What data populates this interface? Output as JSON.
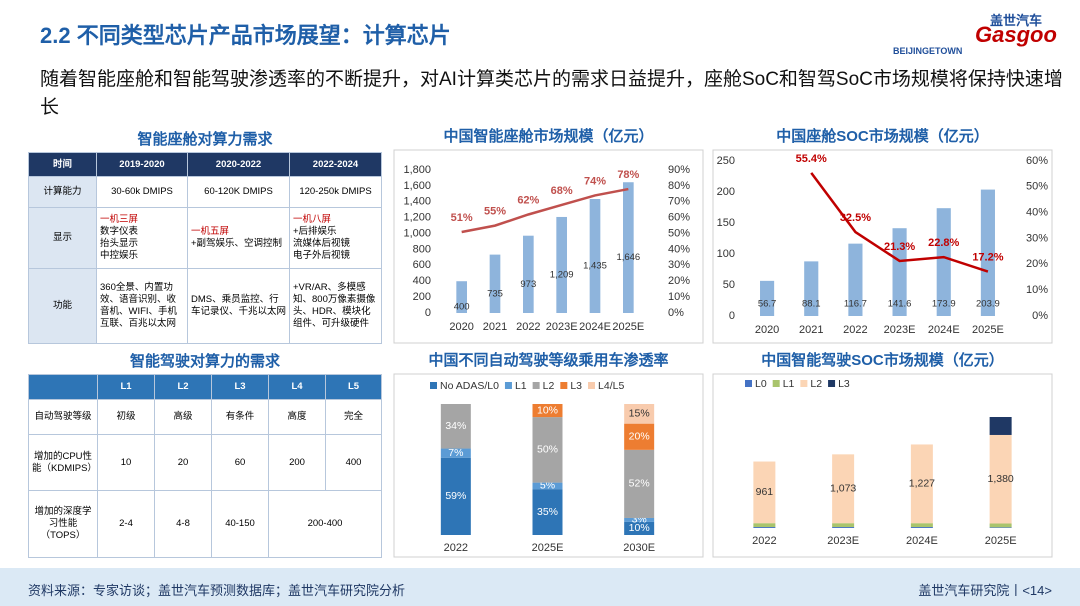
{
  "header": {
    "title": "2.2 不同类型芯片产品市场展望：计算芯片",
    "logo_left": "BEIJINGETOWN",
    "logo_right_cn": "盖世汽车",
    "logo_right_en": "Gasgoo",
    "subtitle": "随着智能座舱和智能驾驶渗透率的不断提升，对AI计算类芯片的需求日益提升，座舱SoC和智驾SoC市场规模将保持快速增长"
  },
  "table1": {
    "title": "智能座舱对算力需求",
    "header": [
      "时间",
      "2019-2020",
      "2020-2022",
      "2022-2024"
    ],
    "rows": [
      [
        "计算能力",
        "30-60k DMIPS",
        "60-120K DMIPS",
        "120-250k DMIPS"
      ],
      [
        "显示",
        [
          "一机三屏",
          "数字仪表",
          "抬头显示",
          "中控娱乐"
        ],
        [
          "一机五屏",
          "+副驾娱乐、空调控制"
        ],
        [
          "一机八屏",
          "+后排娱乐",
          "流媒体后视镜",
          "电子外后视镜"
        ]
      ],
      [
        "功能",
        "360全景、内置功效、语音识别、收音机、WIFI、手机互联、百兆以太网",
        "DMS、乘员监控、行车记录仪、千兆以太网",
        "+VR/AR、多模感知、800万像素摄像头、HDR、模块化组件、可升级硬件"
      ]
    ]
  },
  "table2": {
    "title": "智能驾驶对算力的需求",
    "header": [
      "",
      "L1",
      "L2",
      "L3",
      "L4",
      "L5"
    ],
    "rows": [
      [
        "自动驾驶等级",
        "初级",
        "高级",
        "有条件",
        "高度",
        "完全"
      ],
      [
        "增加的CPU性能（KDMIPS）",
        "10",
        "20",
        "60",
        "200",
        "400"
      ],
      [
        "增加的深度学习性能（TOPS）",
        "2-4",
        "4-8",
        "40-150",
        "200-400"
      ]
    ]
  },
  "chart_data": [
    {
      "type": "combo",
      "title": "中国智能座舱市场规模（亿元）",
      "categories": [
        "2020",
        "2021",
        "2022",
        "2023E",
        "2024E",
        "2025E"
      ],
      "series": [
        {
          "color": "#8eb4dc",
          "values": [
            400,
            735,
            973,
            1209,
            1435,
            1646
          ],
          "value_labels": [
            "400",
            "735",
            "973",
            "1,209",
            "1,435",
            "1,646"
          ]
        },
        {
          "axis": "y2",
          "color": "#c0504d",
          "values": [
            51,
            55,
            62,
            68,
            74,
            78
          ],
          "value_labels": [
            "51%",
            "55%",
            "62%",
            "68%",
            "74%",
            "78%"
          ]
        }
      ],
      "ylim": [
        0,
        1800
      ],
      "yticks": [
        0,
        200,
        400,
        600,
        800,
        {
          "value": 1000,
          "label": "1,000"
        },
        {
          "value": 1200,
          "label": "1,200"
        },
        {
          "value": 1400,
          "label": "1,400"
        },
        {
          "value": 1600,
          "label": "1,600"
        },
        {
          "value": 1800,
          "label": "1,800"
        }
      ],
      "y2lim": [
        0,
        90
      ],
      "y2ticks": [
        {
          "value": 0,
          "label": "0%"
        },
        {
          "value": 10,
          "label": "10%"
        },
        {
          "value": 20,
          "label": "20%"
        },
        {
          "value": 30,
          "label": "30%"
        },
        {
          "value": 40,
          "label": "40%"
        },
        {
          "value": 50,
          "label": "50%"
        },
        {
          "value": 60,
          "label": "60%"
        },
        {
          "value": 70,
          "label": "70%"
        },
        {
          "value": 80,
          "label": "80%"
        },
        {
          "value": 90,
          "label": "90%"
        }
      ]
    },
    {
      "type": "combo",
      "title": "中国座舱SOC市场规模（亿元）",
      "categories": [
        "2020",
        "2021",
        "2022",
        "2023E",
        "2024E",
        "2025E"
      ],
      "series": [
        {
          "color": "#8eb4dc",
          "values": [
            56.7,
            88.1,
            116.7,
            141.6,
            173.9,
            203.9
          ]
        },
        {
          "axis": "y2",
          "color": "#c00000",
          "values": [
            null,
            55.4,
            32.5,
            21.3,
            22.8,
            17.2
          ],
          "value_labels": [
            null,
            "55.4%",
            "32.5%",
            "21.3%",
            "22.8%",
            "17.2%"
          ]
        }
      ],
      "ylim": [
        0,
        250
      ],
      "yticks": [
        0,
        50,
        100,
        150,
        200,
        250
      ],
      "y2lim": [
        0,
        60
      ],
      "y2ticks": [
        {
          "value": 0,
          "label": "0%"
        },
        {
          "value": 10,
          "label": "10%"
        },
        {
          "value": 20,
          "label": "20%"
        },
        {
          "value": 30,
          "label": "30%"
        },
        {
          "value": 40,
          "label": "40%"
        },
        {
          "value": 50,
          "label": "50%"
        },
        {
          "value": 60,
          "label": "60%"
        }
      ]
    },
    {
      "type": "stacked",
      "title": "中国不同自动驾驶等级乘用车渗透率",
      "categories": [
        "2022",
        "2025E",
        "2030E"
      ],
      "series": [
        {
          "name": "No ADAS/L0",
          "color": "#2e75b6",
          "values": [
            59,
            35,
            10
          ],
          "value_labels": [
            "59%",
            "35%",
            "10%"
          ]
        },
        {
          "name": "L1",
          "color": "#5b9bd5",
          "values": [
            7,
            5,
            3
          ],
          "value_labels": [
            "7%",
            "5%",
            "3%"
          ]
        },
        {
          "name": "L2",
          "color": "#a5a5a5",
          "values": [
            34,
            50,
            52
          ],
          "value_labels": [
            "34%",
            "50%",
            "52%"
          ]
        },
        {
          "name": "L3",
          "color": "#ed7d31",
          "values": [
            null,
            10,
            20
          ],
          "value_labels": [
            null,
            "10%",
            "20%"
          ]
        },
        {
          "name": "L4/L5",
          "color": "#f8cbad",
          "values": [
            null,
            null,
            15
          ],
          "value_labels": [
            null,
            null,
            "15%"
          ]
        }
      ]
    },
    {
      "type": "stacked",
      "title": "中国智能驾驶SOC市场规模（亿元）",
      "categories": [
        "2022",
        "2023E",
        "2024E",
        "2025E"
      ],
      "series": [
        {
          "name": "L0",
          "color": "#4472c4",
          "values": [
            15,
            15,
            15,
            10
          ]
        },
        {
          "name": "L1",
          "color": "#a9c46c",
          "values": [
            60,
            60,
            60,
            60
          ]
        },
        {
          "name": "L2",
          "color": "#fbd5b5",
          "values": [
            961,
            1073,
            1227,
            1380
          ],
          "value_labels": [
            "961",
            "1,073",
            "1,227",
            "1,380"
          ]
        },
        {
          "name": "L3",
          "color": "#1f3864",
          "values": [
            null,
            null,
            null,
            280
          ]
        }
      ]
    }
  ],
  "footer": {
    "source": "资料来源：专家访谈；盖世汽车预测数据库；盖世汽车研究院分析",
    "page": "盖世汽车研究院丨<14>"
  }
}
